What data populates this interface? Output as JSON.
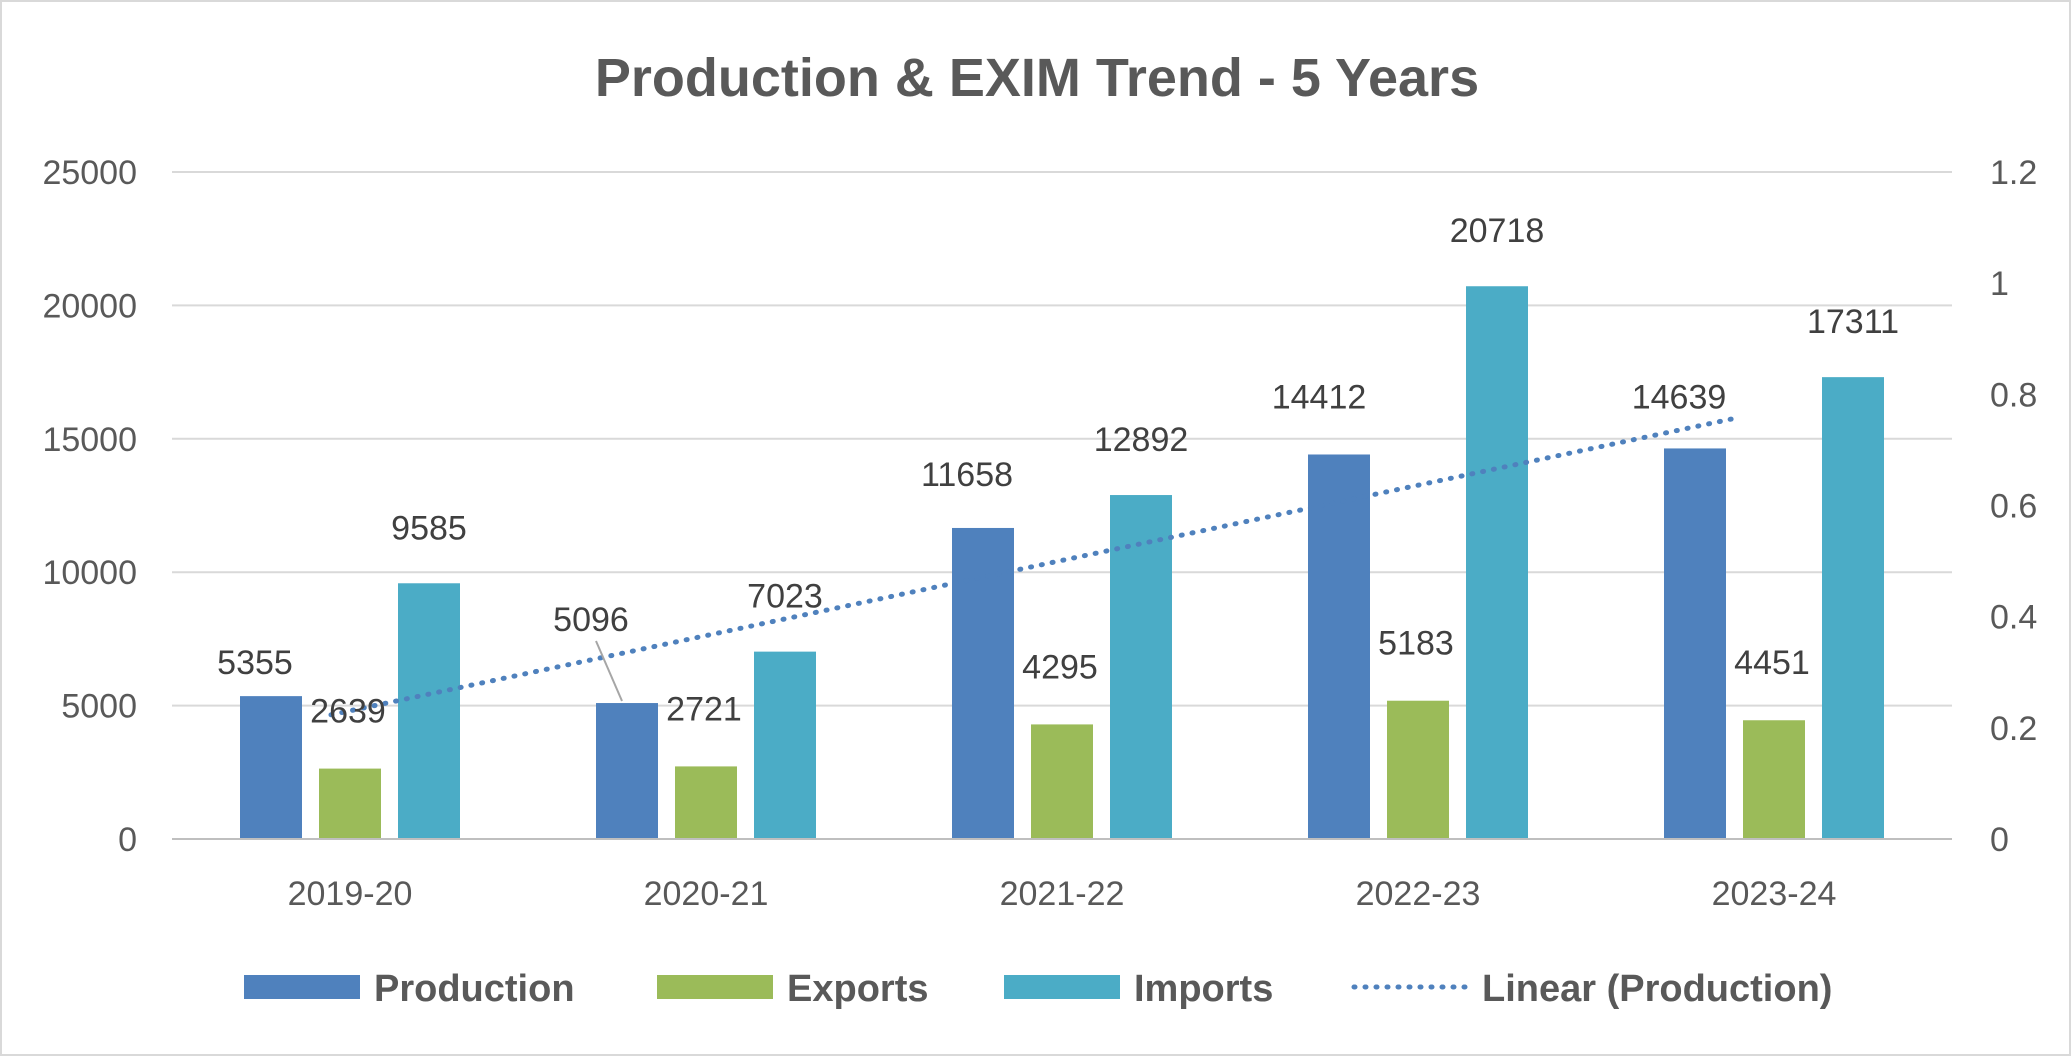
{
  "chart_data": {
    "type": "bar",
    "title": "Production & EXIM Trend - 5 Years",
    "categories": [
      "2019-20",
      "2020-21",
      "2021-22",
      "2022-23",
      "2023-24"
    ],
    "series": [
      {
        "name": "Production",
        "values": [
          5355,
          5096,
          11658,
          14412,
          14639
        ],
        "color": "#4f81bd"
      },
      {
        "name": "Exports",
        "values": [
          2639,
          2721,
          4295,
          5183,
          4451
        ],
        "color": "#9bbb59"
      },
      {
        "name": "Imports",
        "values": [
          9585,
          7023,
          12892,
          20718,
          17311
        ],
        "color": "#4bacc6"
      }
    ],
    "trendline": {
      "name": "Linear (Production)",
      "of": "Production",
      "color": "#4f81bd",
      "style": "dotted"
    },
    "ylim": [
      0,
      25000
    ],
    "yticks": [
      "0",
      "5000",
      "10000",
      "15000",
      "20000",
      "25000"
    ],
    "ylim_secondary": [
      0,
      1.2
    ],
    "yticks_secondary": [
      "0",
      "0.2",
      "0.4",
      "0.6",
      "0.8",
      "1",
      "1.2"
    ],
    "xlabel": "",
    "ylabel": "",
    "grid": true,
    "legend_position": "bottom"
  }
}
